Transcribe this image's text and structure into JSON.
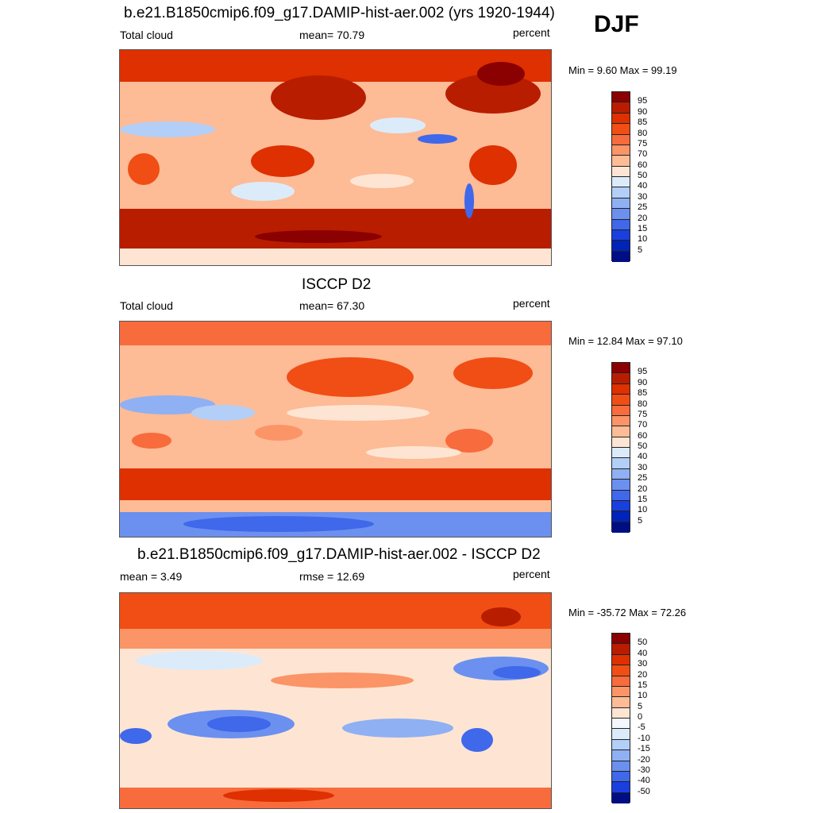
{
  "season": "DJF",
  "panels": [
    {
      "title": "b.e21.B1850cmip6.f09_g17.DAMIP-hist-aer.002 (yrs 1920-1944)",
      "left_label": "Total cloud",
      "center_label": "mean=  70.79",
      "right_label": "percent",
      "minmax": "Min =   9.60 Max =  99.19",
      "colorbar_labels": [
        "95",
        "90",
        "85",
        "80",
        "75",
        "70",
        "60",
        "50",
        "40",
        "30",
        "25",
        "20",
        "15",
        "10",
        "5"
      ],
      "colors": [
        "#8b0000",
        "#b81d00",
        "#de3000",
        "#f04e14",
        "#f86b3c",
        "#fb9466",
        "#fdbb96",
        "#fee5d3",
        "#dcebfa",
        "#b3cff7",
        "#8fb0f3",
        "#6b90ef",
        "#3f68ea",
        "#1a3fdf",
        "#0024b8",
        "#000e85"
      ]
    },
    {
      "title": "ISCCP D2",
      "left_label": "Total cloud",
      "center_label": "mean=  67.30",
      "right_label": "percent",
      "minmax": "Min =  12.84 Max =  97.10",
      "colorbar_labels": [
        "95",
        "90",
        "85",
        "80",
        "75",
        "70",
        "60",
        "50",
        "40",
        "30",
        "25",
        "20",
        "15",
        "10",
        "5"
      ],
      "colors": [
        "#8b0000",
        "#b81d00",
        "#de3000",
        "#f04e14",
        "#f86b3c",
        "#fb9466",
        "#fdbb96",
        "#fee5d3",
        "#dcebfa",
        "#b3cff7",
        "#8fb0f3",
        "#6b90ef",
        "#3f68ea",
        "#1a3fdf",
        "#0024b8",
        "#000e85"
      ]
    },
    {
      "title": "b.e21.B1850cmip6.f09_g17.DAMIP-hist-aer.002 - ISCCP D2",
      "left_label": "mean =   3.49",
      "center_label": "rmse =  12.69",
      "right_label": "percent",
      "minmax": "Min = -35.72 Max =  72.26",
      "colorbar_labels": [
        "50",
        "40",
        "30",
        "20",
        "15",
        "10",
        "5",
        "0",
        "-5",
        "-10",
        "-15",
        "-20",
        "-30",
        "-40",
        "-50"
      ],
      "colors": [
        "#8b0000",
        "#b81d00",
        "#de3000",
        "#f04e14",
        "#f86b3c",
        "#fb9466",
        "#fdbb96",
        "#fee5d3",
        "#f4f8fd",
        "#dcebfa",
        "#b3cff7",
        "#8fb0f3",
        "#6b90ef",
        "#3f68ea",
        "#1a3fdf",
        "#000e85"
      ]
    }
  ]
}
